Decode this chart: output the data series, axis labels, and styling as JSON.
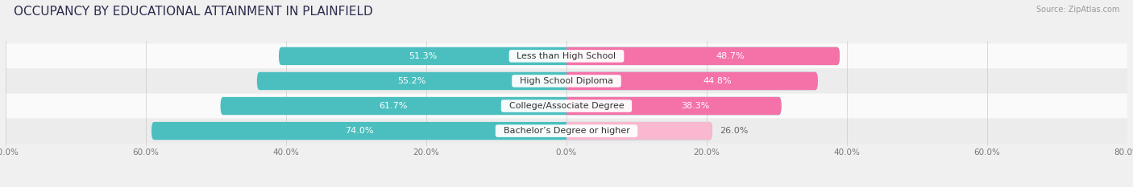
{
  "title": "OCCUPANCY BY EDUCATIONAL ATTAINMENT IN PLAINFIELD",
  "source": "Source: ZipAtlas.com",
  "categories": [
    "Less than High School",
    "High School Diploma",
    "College/Associate Degree",
    "Bachelor’s Degree or higher"
  ],
  "owner_values": [
    51.3,
    55.2,
    61.7,
    74.0
  ],
  "renter_values": [
    48.7,
    44.8,
    38.3,
    26.0
  ],
  "owner_color": "#4BBFBF",
  "renter_color": "#F472A8",
  "renter_color_light": "#F9B8D0",
  "xlim": 80.0,
  "bar_height": 0.72,
  "bg_color": "#f0f0f0",
  "row_colors": [
    "#fafafa",
    "#ececec",
    "#fafafa",
    "#ececec"
  ],
  "title_fontsize": 11,
  "label_fontsize": 8,
  "value_fontsize": 8,
  "legend_fontsize": 8.5,
  "axis_label_fontsize": 7.5
}
